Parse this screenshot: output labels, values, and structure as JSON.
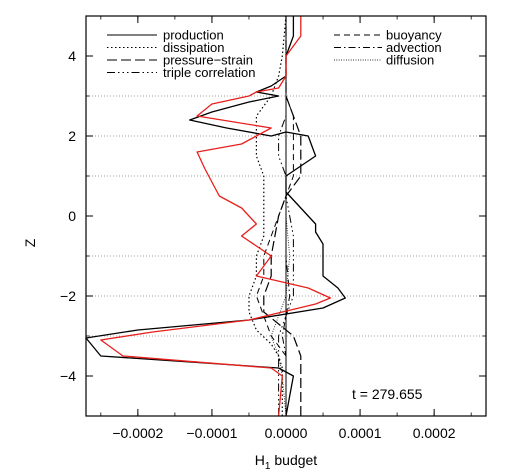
{
  "chart_data": {
    "type": "line",
    "xlabel_main": "H",
    "xlabel_sub": "1",
    "xlabel_rest": " budget",
    "ylabel": "Z",
    "xlim": [
      -0.00027,
      0.00027
    ],
    "ylim": [
      -5,
      5
    ],
    "xticks": [
      -0.0002,
      -0.0001,
      0.0,
      0.0001,
      0.0002
    ],
    "xtick_labels": [
      "−0.0002",
      "−0.0001",
      "0.0000",
      "0.0001",
      "0.0002"
    ],
    "yticks": [
      -4,
      -2,
      0,
      2,
      4
    ],
    "ytick_labels": [
      "−4",
      "−2",
      "0",
      "2",
      "4"
    ],
    "grid_y": [
      -3,
      -2,
      -1,
      1,
      2,
      3
    ],
    "annotation": "t = 279.655",
    "legend": {
      "left": [
        {
          "label": "production",
          "style": "solid"
        },
        {
          "label": "dissipation",
          "style": "dotted"
        },
        {
          "label": "pressure−strain",
          "style": "longdash"
        },
        {
          "label": "triple correlation",
          "style": "dashdotdotdot"
        }
      ],
      "right": [
        {
          "label": "buoyancy",
          "style": "dashed"
        },
        {
          "label": "advection",
          "style": "dashdot"
        },
        {
          "label": "diffusion",
          "style": "finedot"
        }
      ]
    },
    "colors": {
      "black": "#000000",
      "red": "#e8201c",
      "grid": "#808080"
    },
    "series": [
      {
        "name": "production",
        "color": "#000000",
        "dash": "",
        "width": 1.3,
        "points": [
          [
            0.0,
            -5
          ],
          [
            1e-05,
            -4
          ],
          [
            -1e-05,
            -3.8
          ],
          [
            -0.00025,
            -3.5
          ],
          [
            -0.00027,
            -3.05
          ],
          [
            -0.0002,
            -2.85
          ],
          [
            -5e-05,
            -2.6
          ],
          [
            5e-05,
            -2.3
          ],
          [
            8e-05,
            -2.05
          ],
          [
            7e-05,
            -1.8
          ],
          [
            5e-05,
            -1.5
          ],
          [
            5e-05,
            -1.2
          ],
          [
            5e-05,
            -1.0
          ],
          [
            5e-05,
            -0.7
          ],
          [
            4e-05,
            -0.4
          ],
          [
            4e-05,
            -0.2
          ],
          [
            2e-05,
            0.2
          ],
          [
            0.0,
            0.6
          ],
          [
            0.0,
            1.0
          ],
          [
            4e-05,
            1.5
          ],
          [
            3e-05,
            2.0
          ],
          [
            0.0,
            2.1
          ],
          [
            -2e-05,
            2.0
          ],
          [
            -8e-05,
            2.2
          ],
          [
            -0.00013,
            2.4
          ],
          [
            -0.0001,
            2.6
          ],
          [
            -5e-05,
            2.85
          ],
          [
            -1e-05,
            3.0
          ],
          [
            -4e-05,
            3.1
          ],
          [
            -2e-05,
            3.25
          ],
          [
            0.0,
            3.5
          ],
          [
            0.0,
            4.0
          ],
          [
            1e-05,
            4.5
          ],
          [
            1e-05,
            5.0
          ]
        ]
      },
      {
        "name": "dissipation",
        "color": "#000000",
        "dash": "1.5,2.5",
        "width": 1.2,
        "points": [
          [
            -5e-06,
            -5
          ],
          [
            -5e-06,
            -3.8
          ],
          [
            -1e-05,
            -3.5
          ],
          [
            -2e-05,
            -3.2
          ],
          [
            -4e-05,
            -2.85
          ],
          [
            -5e-05,
            -2.4
          ],
          [
            -5e-05,
            -2.0
          ],
          [
            -4e-05,
            -1.5
          ],
          [
            -4e-05,
            -1.0
          ],
          [
            -3e-05,
            -0.5
          ],
          [
            -3e-05,
            0.0
          ],
          [
            -3e-05,
            0.5
          ],
          [
            -3e-05,
            1.0
          ],
          [
            -4e-05,
            1.5
          ],
          [
            -4e-05,
            2.0
          ],
          [
            -4e-05,
            2.5
          ],
          [
            -2e-05,
            3.0
          ],
          [
            -1e-05,
            3.5
          ],
          [
            -5e-06,
            4.0
          ],
          [
            0.0,
            5.0
          ]
        ]
      },
      {
        "name": "pressure-strain",
        "color": "#000000",
        "dash": "10,4",
        "width": 1.2,
        "points": [
          [
            2e-05,
            -5
          ],
          [
            2e-05,
            -4
          ],
          [
            2e-05,
            -3.5
          ],
          [
            1e-05,
            -3.0
          ],
          [
            -3e-05,
            -2.4
          ],
          [
            -3e-05,
            -2.0
          ],
          [
            -2e-05,
            -1.5
          ],
          [
            -2e-05,
            -1.0
          ],
          [
            -1.5e-05,
            -0.5
          ],
          [
            -1e-05,
            0.0
          ],
          [
            0.0,
            0.5
          ],
          [
            2e-05,
            1.0
          ],
          [
            2e-05,
            1.5
          ],
          [
            2e-05,
            2.0
          ],
          [
            1e-05,
            2.5
          ],
          [
            0.0,
            3.0
          ],
          [
            0.0,
            3.5
          ],
          [
            0.0,
            4.0
          ],
          [
            0.0,
            5.0
          ]
        ]
      },
      {
        "name": "triple correlation",
        "color": "#000000",
        "dash": "8,3,1.5,3,1.5,3,1.5,3",
        "width": 1.0,
        "points": [
          [
            -1e-05,
            -5
          ],
          [
            -1e-05,
            -3.5
          ],
          [
            -1e-05,
            -3.0
          ],
          [
            0.0,
            -2.5
          ],
          [
            1e-05,
            -2.0
          ],
          [
            1e-05,
            -1.5
          ],
          [
            1e-05,
            -1.0
          ],
          [
            1e-05,
            -0.5
          ],
          [
            5e-06,
            0.0
          ],
          [
            0.0,
            0.5
          ],
          [
            0.0,
            1.0
          ],
          [
            -1e-05,
            1.5
          ],
          [
            -1e-05,
            2.0
          ],
          [
            0.0,
            2.5
          ],
          [
            0.0,
            3.0
          ],
          [
            0.0,
            3.5
          ],
          [
            0.0,
            4.0
          ],
          [
            0.0,
            5.0
          ]
        ]
      },
      {
        "name": "buoyancy",
        "color": "#000000",
        "dash": "6,4",
        "width": 1.0,
        "points": [
          [
            0.0,
            -5
          ],
          [
            0.0,
            -3.5
          ],
          [
            -2e-05,
            -3.0
          ],
          [
            -4e-05,
            -2.0
          ],
          [
            -3e-05,
            -1.5
          ],
          [
            -3e-05,
            -1.0
          ],
          [
            -2e-05,
            -0.5
          ],
          [
            -1e-05,
            0.0
          ],
          [
            0.0,
            0.5
          ],
          [
            1e-05,
            1.0
          ],
          [
            1e-05,
            1.5
          ],
          [
            1e-05,
            2.0
          ],
          [
            1e-05,
            2.5
          ],
          [
            0.0,
            3.0
          ],
          [
            0.0,
            3.5
          ],
          [
            0.0,
            4.0
          ],
          [
            0.0,
            5.0
          ]
        ]
      },
      {
        "name": "advection",
        "color": "#000000",
        "dash": "7,3,1.5,3",
        "width": 1.0,
        "points": [
          [
            0.0,
            -5
          ],
          [
            0.0,
            -4
          ],
          [
            0.0,
            -3.5
          ],
          [
            -5e-06,
            -3.0
          ],
          [
            0.0,
            -2.5
          ],
          [
            5e-06,
            -2.0
          ],
          [
            0.0,
            -1.0
          ],
          [
            0.0,
            0.0
          ],
          [
            0.0,
            1.0
          ],
          [
            0.0,
            2.0
          ],
          [
            0.0,
            3.0
          ],
          [
            0.0,
            4.0
          ],
          [
            0.0,
            5.0
          ]
        ]
      },
      {
        "name": "diffusion",
        "color": "#000000",
        "dash": "0.8,1.6",
        "width": 0.9,
        "points": [
          [
            0.0,
            -5
          ],
          [
            -5e-06,
            -4.0
          ],
          [
            -1e-05,
            -3.5
          ],
          [
            -2e-05,
            -3.0
          ],
          [
            -1e-05,
            -2.5
          ],
          [
            0.0,
            -2.0
          ],
          [
            5e-06,
            -1.0
          ],
          [
            0.0,
            0.0
          ],
          [
            0.0,
            1.0
          ],
          [
            0.0,
            2.0
          ],
          [
            0.0,
            3.0
          ],
          [
            0.0,
            4.0
          ],
          [
            0.0,
            5.0
          ]
        ]
      },
      {
        "name": "production",
        "color": "#e8201c",
        "dash": "",
        "width": 1.3,
        "points": [
          [
            -1e-05,
            -5
          ],
          [
            -5e-06,
            -4
          ],
          [
            -2e-05,
            -3.8
          ],
          [
            -0.00022,
            -3.5
          ],
          [
            -0.00025,
            -3.1
          ],
          [
            -0.00018,
            -2.9
          ],
          [
            -5e-05,
            -2.6
          ],
          [
            4e-05,
            -2.2
          ],
          [
            6e-05,
            -2.05
          ],
          [
            3e-05,
            -1.8
          ],
          [
            -4e-05,
            -1.5
          ],
          [
            -2e-05,
            -1.0
          ],
          [
            -6e-05,
            -0.5
          ],
          [
            -4e-05,
            -0.2
          ],
          [
            -6e-05,
            0.2
          ],
          [
            -9e-05,
            0.5
          ],
          [
            -0.00011,
            1.2
          ],
          [
            -0.00012,
            1.6
          ],
          [
            -6e-05,
            1.8
          ],
          [
            -2e-05,
            2.2
          ],
          [
            -0.00012,
            2.5
          ],
          [
            -0.0001,
            2.8
          ],
          [
            -5e-05,
            3.0
          ],
          [
            -4e-05,
            3.1
          ],
          [
            -1e-05,
            3.2
          ],
          [
            0.0,
            3.5
          ],
          [
            0.0,
            4.0
          ],
          [
            2e-05,
            4.5
          ],
          [
            2e-05,
            5.0
          ]
        ]
      }
    ]
  }
}
